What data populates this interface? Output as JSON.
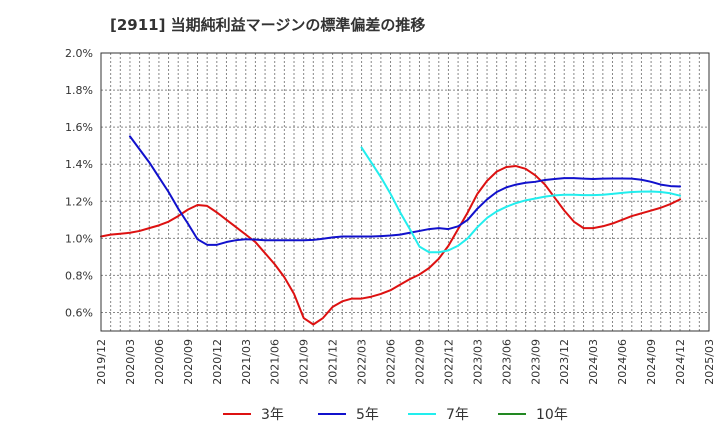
{
  "chart_data": {
    "type": "line",
    "title": "[2911]  当期純利益マージンの標準偏差の推移",
    "xlabel": "",
    "ylabel": "",
    "ylim": [
      0.5,
      2.0
    ],
    "grid": true,
    "legend_position": "bottom",
    "y_ticks": [
      "0.6%",
      "0.8%",
      "1.0%",
      "1.2%",
      "1.4%",
      "1.6%",
      "1.8%",
      "2.0%"
    ],
    "x_ticks": [
      "2019/12",
      "2020/03",
      "2020/06",
      "2020/09",
      "2020/12",
      "2021/03",
      "2021/06",
      "2021/09",
      "2021/12",
      "2022/03",
      "2022/06",
      "2022/09",
      "2022/12",
      "2023/03",
      "2023/06",
      "2023/09",
      "2023/12",
      "2024/03",
      "2024/06",
      "2024/09",
      "2024/12",
      "2025/03"
    ],
    "series": [
      {
        "name": "3年",
        "color": "#dd1111",
        "points": [
          [
            "2019/12",
            1.01
          ],
          [
            "2020/01",
            1.02
          ],
          [
            "2020/02",
            1.025
          ],
          [
            "2020/03",
            1.03
          ],
          [
            "2020/04",
            1.04
          ],
          [
            "2020/05",
            1.055
          ],
          [
            "2020/06",
            1.07
          ],
          [
            "2020/07",
            1.09
          ],
          [
            "2020/08",
            1.12
          ],
          [
            "2020/09",
            1.155
          ],
          [
            "2020/10",
            1.18
          ],
          [
            "2020/11",
            1.175
          ],
          [
            "2020/12",
            1.14
          ],
          [
            "2021/01",
            1.1
          ],
          [
            "2021/02",
            1.06
          ],
          [
            "2021/03",
            1.02
          ],
          [
            "2021/04",
            0.98
          ],
          [
            "2021/05",
            0.92
          ],
          [
            "2021/06",
            0.86
          ],
          [
            "2021/07",
            0.79
          ],
          [
            "2021/08",
            0.7
          ],
          [
            "2021/09",
            0.57
          ],
          [
            "2021/10",
            0.535
          ],
          [
            "2021/11",
            0.57
          ],
          [
            "2021/12",
            0.63
          ],
          [
            "2022/01",
            0.66
          ],
          [
            "2022/02",
            0.675
          ],
          [
            "2022/03",
            0.675
          ],
          [
            "2022/04",
            0.685
          ],
          [
            "2022/05",
            0.7
          ],
          [
            "2022/06",
            0.72
          ],
          [
            "2022/07",
            0.75
          ],
          [
            "2022/08",
            0.78
          ],
          [
            "2022/09",
            0.805
          ],
          [
            "2022/10",
            0.84
          ],
          [
            "2022/11",
            0.89
          ],
          [
            "2022/12",
            0.96
          ],
          [
            "2023/01",
            1.05
          ],
          [
            "2023/02",
            1.14
          ],
          [
            "2023/03",
            1.24
          ],
          [
            "2023/04",
            1.31
          ],
          [
            "2023/05",
            1.36
          ],
          [
            "2023/06",
            1.385
          ],
          [
            "2023/07",
            1.39
          ],
          [
            "2023/08",
            1.375
          ],
          [
            "2023/09",
            1.34
          ],
          [
            "2023/10",
            1.29
          ],
          [
            "2023/11",
            1.22
          ],
          [
            "2023/12",
            1.15
          ],
          [
            "2024/01",
            1.09
          ],
          [
            "2024/02",
            1.055
          ],
          [
            "2024/03",
            1.055
          ],
          [
            "2024/04",
            1.065
          ],
          [
            "2024/05",
            1.08
          ],
          [
            "2024/06",
            1.1
          ],
          [
            "2024/07",
            1.12
          ],
          [
            "2024/08",
            1.135
          ],
          [
            "2024/09",
            1.15
          ],
          [
            "2024/10",
            1.165
          ],
          [
            "2024/11",
            1.185
          ],
          [
            "2024/12",
            1.21
          ]
        ]
      },
      {
        "name": "5年",
        "color": "#1111cc",
        "points": [
          [
            "2020/03",
            1.55
          ],
          [
            "2020/04",
            1.48
          ],
          [
            "2020/05",
            1.41
          ],
          [
            "2020/06",
            1.33
          ],
          [
            "2020/07",
            1.25
          ],
          [
            "2020/08",
            1.16
          ],
          [
            "2020/09",
            1.08
          ],
          [
            "2020/10",
            0.995
          ],
          [
            "2020/11",
            0.965
          ],
          [
            "2020/12",
            0.965
          ],
          [
            "2021/01",
            0.98
          ],
          [
            "2021/02",
            0.99
          ],
          [
            "2021/03",
            0.995
          ],
          [
            "2021/04",
            0.993
          ],
          [
            "2021/05",
            0.99
          ],
          [
            "2021/06",
            0.99
          ],
          [
            "2021/07",
            0.99
          ],
          [
            "2021/08",
            0.99
          ],
          [
            "2021/09",
            0.99
          ],
          [
            "2021/10",
            0.992
          ],
          [
            "2021/11",
            0.998
          ],
          [
            "2021/12",
            1.005
          ],
          [
            "2022/01",
            1.01
          ],
          [
            "2022/02",
            1.01
          ],
          [
            "2022/03",
            1.01
          ],
          [
            "2022/04",
            1.01
          ],
          [
            "2022/05",
            1.012
          ],
          [
            "2022/06",
            1.015
          ],
          [
            "2022/07",
            1.02
          ],
          [
            "2022/08",
            1.03
          ],
          [
            "2022/09",
            1.04
          ],
          [
            "2022/10",
            1.05
          ],
          [
            "2022/11",
            1.055
          ],
          [
            "2022/12",
            1.05
          ],
          [
            "2023/01",
            1.065
          ],
          [
            "2023/02",
            1.1
          ],
          [
            "2023/03",
            1.16
          ],
          [
            "2023/04",
            1.21
          ],
          [
            "2023/05",
            1.25
          ],
          [
            "2023/06",
            1.275
          ],
          [
            "2023/07",
            1.29
          ],
          [
            "2023/08",
            1.3
          ],
          [
            "2023/09",
            1.305
          ],
          [
            "2023/10",
            1.315
          ],
          [
            "2023/11",
            1.32
          ],
          [
            "2023/12",
            1.325
          ],
          [
            "2024/01",
            1.325
          ],
          [
            "2024/02",
            1.322
          ],
          [
            "2024/03",
            1.32
          ],
          [
            "2024/04",
            1.322
          ],
          [
            "2024/05",
            1.323
          ],
          [
            "2024/06",
            1.323
          ],
          [
            "2024/07",
            1.322
          ],
          [
            "2024/08",
            1.316
          ],
          [
            "2024/09",
            1.305
          ],
          [
            "2024/10",
            1.29
          ],
          [
            "2024/11",
            1.282
          ],
          [
            "2024/12",
            1.28
          ]
        ]
      },
      {
        "name": "7年",
        "color": "#22eeee",
        "points": [
          [
            "2022/03",
            1.49
          ],
          [
            "2022/04",
            1.41
          ],
          [
            "2022/05",
            1.33
          ],
          [
            "2022/06",
            1.24
          ],
          [
            "2022/07",
            1.14
          ],
          [
            "2022/08",
            1.05
          ],
          [
            "2022/09",
            0.955
          ],
          [
            "2022/10",
            0.925
          ],
          [
            "2022/11",
            0.925
          ],
          [
            "2022/12",
            0.935
          ],
          [
            "2023/01",
            0.96
          ],
          [
            "2023/02",
            1.0
          ],
          [
            "2023/03",
            1.06
          ],
          [
            "2023/04",
            1.11
          ],
          [
            "2023/05",
            1.145
          ],
          [
            "2023/06",
            1.17
          ],
          [
            "2023/07",
            1.19
          ],
          [
            "2023/08",
            1.205
          ],
          [
            "2023/09",
            1.215
          ],
          [
            "2023/10",
            1.225
          ],
          [
            "2023/11",
            1.232
          ],
          [
            "2023/12",
            1.235
          ],
          [
            "2024/01",
            1.235
          ],
          [
            "2024/02",
            1.233
          ],
          [
            "2024/03",
            1.233
          ],
          [
            "2024/04",
            1.235
          ],
          [
            "2024/05",
            1.24
          ],
          [
            "2024/06",
            1.245
          ],
          [
            "2024/07",
            1.25
          ],
          [
            "2024/08",
            1.252
          ],
          [
            "2024/09",
            1.253
          ],
          [
            "2024/10",
            1.25
          ],
          [
            "2024/11",
            1.243
          ],
          [
            "2024/12",
            1.23
          ]
        ]
      },
      {
        "name": "10年",
        "color": "#228822",
        "points": []
      }
    ]
  }
}
